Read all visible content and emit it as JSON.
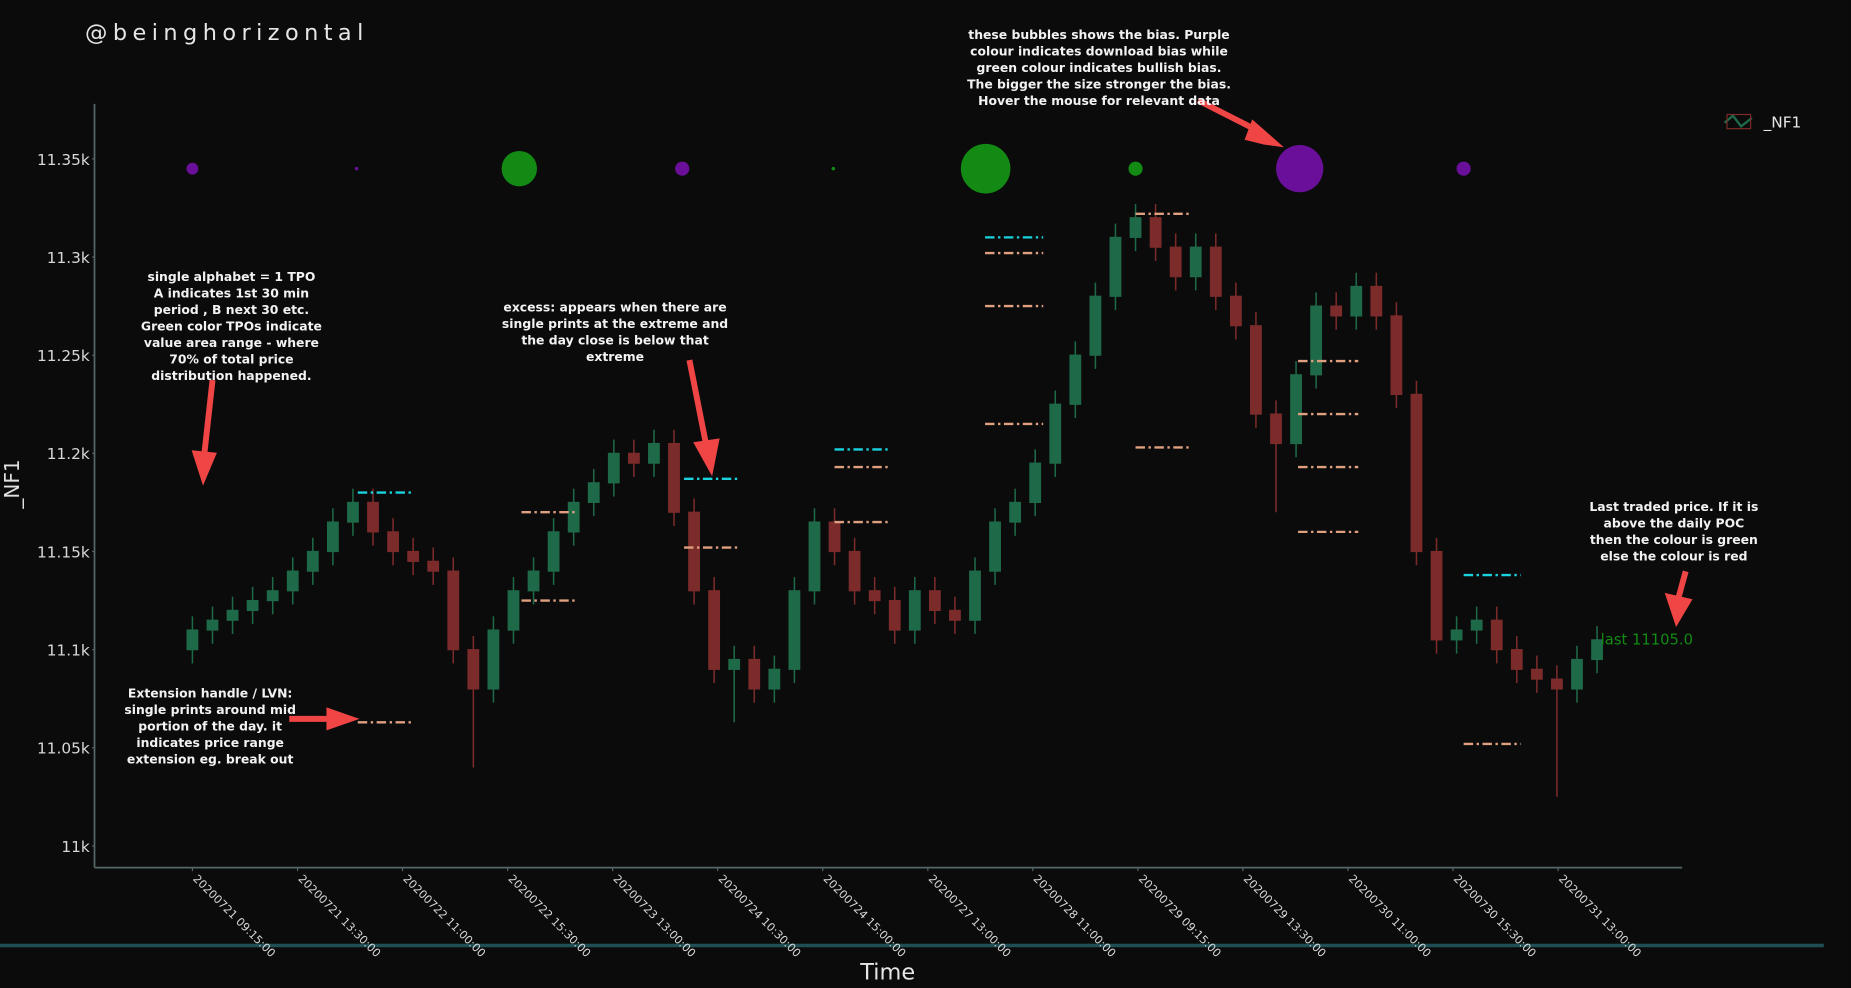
{
  "chart_data": {
    "type": "candlestick",
    "watermark": "@beinghorizontal",
    "y_label": "_NF1",
    "x_label": "Time",
    "legend": "_NF1",
    "ylim": [
      10989,
      11378
    ],
    "yticks": [
      {
        "value": 11000,
        "label": "11k"
      },
      {
        "value": 11050,
        "label": "11.05k"
      },
      {
        "value": 11100,
        "label": "11.1k"
      },
      {
        "value": 11150,
        "label": "11.15k"
      },
      {
        "value": 11200,
        "label": "11.2k"
      },
      {
        "value": 11250,
        "label": "11.25k"
      },
      {
        "value": 11300,
        "label": "11.3k"
      },
      {
        "value": 11350,
        "label": "11.35k"
      }
    ],
    "xlim": [
      -4.88,
      74.24
    ],
    "xticks": [
      {
        "value": 0,
        "label": "20200721 09:15:00"
      },
      {
        "value": 5.24,
        "label": "20200721 13:30:00"
      },
      {
        "value": 10.47,
        "label": "20200722 11:00:00"
      },
      {
        "value": 15.71,
        "label": "20200722 15:30:00"
      },
      {
        "value": 20.94,
        "label": "20200723 13:00:00"
      },
      {
        "value": 26.18,
        "label": "20200724 10:30:00"
      },
      {
        "value": 31.41,
        "label": "20200724 15:00:00"
      },
      {
        "value": 36.65,
        "label": "20200727 13:00:00"
      },
      {
        "value": 41.88,
        "label": "20200728 11:00:00"
      },
      {
        "value": 47.12,
        "label": "20200729 09:15:00"
      },
      {
        "value": 52.35,
        "label": "20200729 13:30:00"
      },
      {
        "value": 57.59,
        "label": "20200730 11:00:00"
      },
      {
        "value": 62.82,
        "label": "20200730 15:30:00"
      },
      {
        "value": 68.06,
        "label": "20200731 13:00:00"
      }
    ],
    "up_color": "#1e6a48",
    "down_color": "#7c2b2b",
    "open": [
      11100,
      11110,
      11115,
      11120,
      11125,
      11130,
      11140,
      11150,
      11165,
      11175,
      11160,
      11150,
      11145,
      11140,
      11100,
      11080,
      11110,
      11130,
      11140,
      11160,
      11175,
      11185,
      11200,
      11195,
      11205,
      11170,
      11130,
      11090,
      11095,
      11080,
      11090,
      11130,
      11165,
      11150,
      11130,
      11125,
      11110,
      11130,
      11120,
      11115,
      11140,
      11165,
      11175,
      11195,
      11225,
      11250,
      11280,
      11310,
      11320,
      11305,
      11290,
      11305,
      11280,
      11265,
      11220,
      11205,
      11240,
      11275,
      11270,
      11285,
      11270,
      11230,
      11150,
      11105,
      11110,
      11115,
      11100,
      11090,
      11085,
      11080,
      11095
    ],
    "high": [
      11117,
      11122,
      11127,
      11132,
      11137,
      11147,
      11157,
      11172,
      11182,
      11182,
      11167,
      11157,
      11152,
      11147,
      11107,
      11117,
      11137,
      11147,
      11167,
      11182,
      11192,
      11207,
      11207,
      11212,
      11212,
      11177,
      11137,
      11102,
      11102,
      11097,
      11137,
      11172,
      11172,
      11157,
      11137,
      11132,
      11137,
      11137,
      11127,
      11147,
      11172,
      11182,
      11202,
      11232,
      11257,
      11287,
      11317,
      11327,
      11327,
      11312,
      11312,
      11312,
      11287,
      11272,
      11227,
      11247,
      11282,
      11282,
      11292,
      11292,
      11277,
      11237,
      11157,
      11117,
      11122,
      11122,
      11107,
      11097,
      11092,
      11102,
      11112
    ],
    "low": [
      11093,
      11103,
      11108,
      11113,
      11118,
      11123,
      11133,
      11143,
      11158,
      11153,
      11143,
      11138,
      11133,
      11093,
      11040,
      11073,
      11103,
      11123,
      11133,
      11153,
      11168,
      11178,
      11188,
      11188,
      11163,
      11123,
      11083,
      11063,
      11073,
      11073,
      11083,
      11123,
      11143,
      11123,
      11118,
      11103,
      11103,
      11113,
      11108,
      11108,
      11133,
      11158,
      11168,
      11188,
      11218,
      11243,
      11273,
      11303,
      11298,
      11283,
      11283,
      11273,
      11258,
      11213,
      11170,
      11198,
      11233,
      11263,
      11263,
      11263,
      11223,
      11143,
      11098,
      11098,
      11103,
      11093,
      11083,
      11078,
      11025,
      11073,
      11088
    ],
    "close": [
      11110,
      11115,
      11120,
      11125,
      11130,
      11140,
      11150,
      11165,
      11175,
      11160,
      11150,
      11145,
      11140,
      11100,
      11080,
      11110,
      11130,
      11140,
      11160,
      11175,
      11185,
      11200,
      11195,
      11205,
      11170,
      11130,
      11090,
      11095,
      11080,
      11090,
      11130,
      11165,
      11150,
      11130,
      11125,
      11110,
      11130,
      11120,
      11115,
      11140,
      11165,
      11175,
      11195,
      11225,
      11250,
      11280,
      11310,
      11320,
      11305,
      11290,
      11305,
      11280,
      11265,
      11220,
      11205,
      11240,
      11275,
      11270,
      11285,
      11270,
      11230,
      11150,
      11105,
      11110,
      11115,
      11100,
      11090,
      11085,
      11080,
      11095,
      11105
    ],
    "bubbles": {
      "y": 11345,
      "x": [
        0,
        8.18,
        16.29,
        24.41,
        31.94,
        39.53,
        47.0,
        55.18,
        63.35
      ],
      "sizes": [
        5,
        1.5,
        15,
        6,
        1.5,
        21,
        6,
        20,
        6
      ],
      "colors": [
        "#6a0f9a",
        "#6a0f9a",
        "#138a13",
        "#6a0f9a",
        "#138a13",
        "#138a13",
        "#138a13",
        "#6a0f9a",
        "#6a0f9a"
      ]
    },
    "poc_color": "#19d3df",
    "poc_levels": [
      {
        "x": [
          8.24,
          11
        ],
        "y": 11180
      },
      {
        "x": [
          24.5,
          27.3
        ],
        "y": 11187
      },
      {
        "x": [
          32,
          34.8
        ],
        "y": 11202
      },
      {
        "x": [
          39.5,
          42.4
        ],
        "y": 11310
      },
      {
        "x": [
          63.35,
          66.2
        ],
        "y": 11138
      }
    ],
    "va_color": "#e0a080",
    "va_levels": [
      {
        "x": [
          16.4,
          19.2
        ],
        "y": 11170
      },
      {
        "x": [
          16.4,
          19.2
        ],
        "y": 11125
      },
      {
        "x": [
          24.5,
          27.3
        ],
        "y": 11152
      },
      {
        "x": [
          32,
          34.8
        ],
        "y": 11193
      },
      {
        "x": [
          32,
          34.8
        ],
        "y": 11165
      },
      {
        "x": [
          39.5,
          42.4
        ],
        "y": 11302
      },
      {
        "x": [
          39.5,
          42.4
        ],
        "y": 11275
      },
      {
        "x": [
          39.5,
          42.4
        ],
        "y": 11215
      },
      {
        "x": [
          47,
          49.8
        ],
        "y": 11322
      },
      {
        "x": [
          47,
          49.8
        ],
        "y": 11203
      },
      {
        "x": [
          55.1,
          58.1
        ],
        "y": 11247
      },
      {
        "x": [
          55.1,
          58.1
        ],
        "y": 11220
      },
      {
        "x": [
          55.1,
          58.1
        ],
        "y": 11193
      },
      {
        "x": [
          55.1,
          58.1
        ],
        "y": 11160
      },
      {
        "x": [
          8.24,
          11
        ],
        "y": 11063
      },
      {
        "x": [
          63.35,
          66.2
        ],
        "y": 11052
      }
    ],
    "last_price": 11105,
    "last_label": "last 11105.0",
    "last_color": "#138a13",
    "annotations": [
      {
        "lines": [
          "single alphabet = 1 TPO",
          "A indicates 1st 30 min",
          "period , B next 30 etc.",
          "Green color TPOs indicate",
          "value area range - where",
          "70% of total price",
          "distribution happened."
        ]
      },
      {
        "lines": [
          "excess: appears when there are",
          "single prints at the extreme and",
          "the day close is below that",
          "extreme"
        ]
      },
      {
        "lines": [
          "these bubbles shows the bias. Purple",
          "colour indicates download bias while",
          "green colour indicates bullish bias.",
          "The bigger the size stronger the bias.",
          "Hover the mouse for relevant data"
        ]
      },
      {
        "lines": [
          "Extension handle / LVN:",
          "single prints around mid",
          "portion of the day. it",
          "indicates price range",
          "extension eg. break out"
        ]
      },
      {
        "lines": [
          "Last traded price. If it is",
          "above the daily POC",
          "then the colour is green",
          "else  the colour is red"
        ]
      }
    ]
  }
}
